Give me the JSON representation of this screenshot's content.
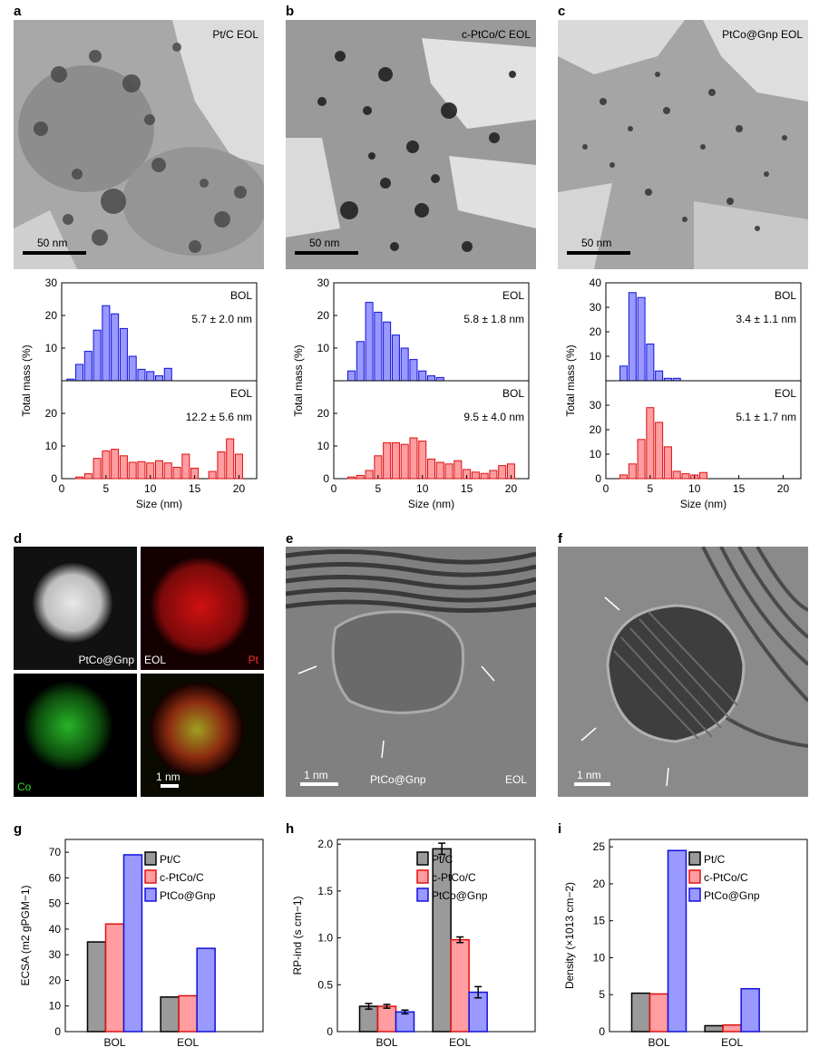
{
  "panels": {
    "a": {
      "label": "a",
      "tem_label": "Pt/C EOL",
      "scale": "50 nm"
    },
    "b": {
      "label": "b",
      "tem_label": "c-PtCo/C EOL",
      "scale": "50 nm"
    },
    "c": {
      "label": "c",
      "tem_label": "PtCo@Gnp EOL",
      "scale": "50 nm"
    },
    "d": {
      "label": "d",
      "map_haadf": "PtCo@Gnp",
      "map_eol": "EOL",
      "map_pt": "Pt",
      "map_co": "Co",
      "scale": "1 nm"
    },
    "e": {
      "label": "e",
      "scale": "1 nm",
      "sample": "PtCo@Gnp",
      "state": "EOL"
    },
    "f": {
      "label": "f",
      "scale": "1 nm"
    },
    "g": {
      "label": "g"
    },
    "h": {
      "label": "h"
    },
    "i": {
      "label": "i"
    }
  },
  "colors": {
    "blue": "#9999ff",
    "blue_edge": "#1010dd",
    "red": "#ff9da0",
    "red_edge": "#dd1010",
    "grey": "#9a9a9a"
  },
  "chart_data": [
    {
      "id": "hist-a",
      "type": "bar",
      "xlabel": "Size (nm)",
      "ylabel": "Total mass (%)",
      "xlim": [
        0,
        22
      ],
      "xticks": [
        0,
        5,
        10,
        15,
        20
      ],
      "top": {
        "label": "BOL",
        "stat": "5.7 ± 2.0 nm",
        "ylim": [
          0,
          30
        ],
        "yticks": [
          10,
          20,
          30
        ],
        "x": [
          1,
          2,
          3,
          4,
          5,
          6,
          7,
          8,
          9,
          10,
          11,
          12
        ],
        "values": [
          0.5,
          5,
          9,
          15.5,
          23,
          20.5,
          16,
          7.5,
          3.5,
          2.8,
          1.5,
          3.8
        ]
      },
      "bottom": {
        "label": "EOL",
        "stat": "12.2 ± 5.6 nm",
        "ylim": [
          0,
          30
        ],
        "yticks": [
          0,
          10,
          20
        ],
        "x": [
          1,
          2,
          3,
          4,
          5,
          6,
          7,
          8,
          9,
          10,
          11,
          12,
          13,
          14,
          15,
          16,
          17,
          18,
          19,
          20
        ],
        "values": [
          0,
          0.5,
          1.5,
          6.2,
          8.5,
          9,
          7,
          5,
          5.2,
          4.8,
          5.5,
          4.8,
          3.5,
          7.5,
          3.2,
          0,
          2.2,
          8.2,
          12.2,
          7.5
        ]
      }
    },
    {
      "id": "hist-b",
      "type": "bar",
      "xlabel": "Size (nm)",
      "ylabel": "Total mass (%)",
      "xlim": [
        0,
        22
      ],
      "xticks": [
        0,
        5,
        10,
        15,
        20
      ],
      "top": {
        "label": "EOL",
        "stat": "5.8 ± 1.8 nm",
        "ylim": [
          0,
          30
        ],
        "yticks": [
          10,
          20,
          30
        ],
        "x": [
          1,
          2,
          3,
          4,
          5,
          6,
          7,
          8,
          9,
          10,
          11,
          12
        ],
        "values": [
          0,
          3,
          12,
          24,
          21,
          18,
          14,
          10,
          6.5,
          3,
          1.5,
          1
        ]
      },
      "bottom": {
        "label": "BOL",
        "stat": "9.5 ± 4.0 nm",
        "ylim": [
          0,
          30
        ],
        "yticks": [
          0,
          10,
          20
        ],
        "x": [
          1,
          2,
          3,
          4,
          5,
          6,
          7,
          8,
          9,
          10,
          11,
          12,
          13,
          14,
          15,
          16,
          17,
          18,
          19,
          20
        ],
        "values": [
          0,
          0.5,
          1,
          2.5,
          7,
          11,
          11,
          10.5,
          12.5,
          11.5,
          6,
          5,
          4.5,
          5.5,
          2.8,
          2,
          1.6,
          2.5,
          4,
          4.5
        ]
      }
    },
    {
      "id": "hist-c",
      "type": "bar",
      "xlabel": "Size (nm)",
      "ylabel": "Total mass (%)",
      "xlim": [
        0,
        22
      ],
      "xticks": [
        0,
        5,
        10,
        15,
        20
      ],
      "top": {
        "label": "BOL",
        "stat": "3.4 ± 1.1 nm",
        "ylim": [
          0,
          40
        ],
        "yticks": [
          10,
          20,
          30,
          40
        ],
        "x": [
          1,
          2,
          3,
          4,
          5,
          6,
          7,
          8
        ],
        "values": [
          0,
          6,
          36,
          34,
          15,
          4,
          1,
          1
        ]
      },
      "bottom": {
        "label": "EOL",
        "stat": "5.1 ± 1.7 nm",
        "ylim": [
          0,
          40
        ],
        "yticks": [
          0,
          10,
          20,
          30
        ],
        "x": [
          1,
          2,
          3,
          4,
          5,
          6,
          7,
          8,
          9,
          10,
          11,
          12
        ],
        "values": [
          0,
          1.5,
          6,
          16,
          29,
          23,
          13,
          3,
          2,
          1.5,
          2.5,
          0
        ]
      }
    },
    {
      "id": "bar-g",
      "type": "bar",
      "categories": [
        "BOL",
        "EOL"
      ],
      "ylabel": "ECSA (m2 gPGM−1)",
      "ylim": [
        0,
        75
      ],
      "yticks": [
        0,
        10,
        20,
        30,
        40,
        50,
        60,
        70
      ],
      "series": [
        {
          "name": "Pt/C",
          "values": [
            35,
            13.5
          ]
        },
        {
          "name": "c-PtCo/C",
          "values": [
            42,
            14
          ]
        },
        {
          "name": "PtCo@Gnp",
          "values": [
            69,
            32.5
          ]
        }
      ]
    },
    {
      "id": "bar-h",
      "type": "bar",
      "categories": [
        "BOL",
        "EOL"
      ],
      "ylabel": "RP-ind (s cm−1)",
      "ylim": [
        0,
        2.05
      ],
      "yticks": [
        "0",
        "0.5",
        "1.0",
        "1.5",
        "2.0"
      ],
      "series": [
        {
          "name": "Pt/C",
          "values": [
            0.27,
            1.95
          ],
          "errors": [
            0.03,
            0.06
          ]
        },
        {
          "name": "c-PtCo/C",
          "values": [
            0.27,
            0.98
          ],
          "errors": [
            0.02,
            0.03
          ]
        },
        {
          "name": "PtCo@Gnp",
          "values": [
            0.21,
            0.42
          ],
          "errors": [
            0.02,
            0.06
          ]
        }
      ]
    },
    {
      "id": "bar-i",
      "type": "bar",
      "categories": [
        "BOL",
        "EOL"
      ],
      "ylabel": "Density (×1013 cm−2)",
      "ylim": [
        0,
        26
      ],
      "yticks": [
        0,
        5,
        10,
        15,
        20,
        25
      ],
      "series": [
        {
          "name": "Pt/C",
          "values": [
            5.2,
            0.8
          ]
        },
        {
          "name": "c-PtCo/C",
          "values": [
            5.1,
            0.9
          ]
        },
        {
          "name": "PtCo@Gnp",
          "values": [
            24.5,
            5.8
          ]
        }
      ]
    }
  ]
}
